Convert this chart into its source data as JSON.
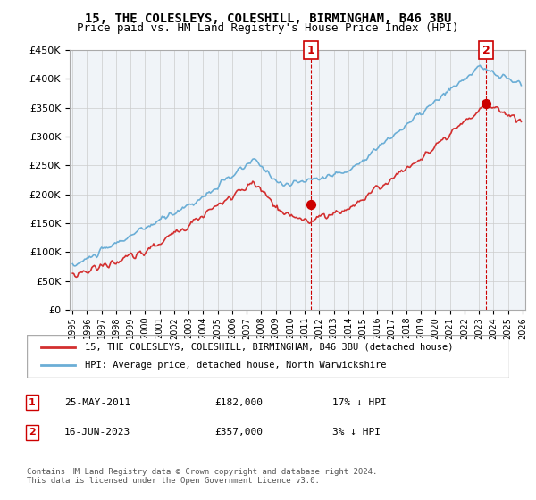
{
  "title": "15, THE COLESLEYS, COLESHILL, BIRMINGHAM, B46 3BU",
  "subtitle": "Price paid vs. HM Land Registry's House Price Index (HPI)",
  "ylabel_ticks": [
    "£0",
    "£50K",
    "£100K",
    "£150K",
    "£200K",
    "£250K",
    "£300K",
    "£350K",
    "£400K",
    "£450K"
  ],
  "ylim": [
    0,
    450000
  ],
  "yticks": [
    0,
    50000,
    100000,
    150000,
    200000,
    250000,
    300000,
    350000,
    400000,
    450000
  ],
  "hpi_color": "#6baed6",
  "price_color": "#d32f2f",
  "marker_color": "#d32f2f",
  "grid_color": "#cccccc",
  "bg_color": "#ffffff",
  "plot_bg": "#f5f5f5",
  "legend_label_price": "15, THE COLESLEYS, COLESHILL, BIRMINGHAM, B46 3BU (detached house)",
  "legend_label_hpi": "HPI: Average price, detached house, North Warwickshire",
  "annotation1_label": "1",
  "annotation1_date": "25-MAY-2011",
  "annotation1_price": "£182,000",
  "annotation1_note": "17% ↓ HPI",
  "annotation2_label": "2",
  "annotation2_date": "16-JUN-2023",
  "annotation2_price": "£357,000",
  "annotation2_note": "3% ↓ HPI",
  "footer": "Contains HM Land Registry data © Crown copyright and database right 2024.\nThis data is licensed under the Open Government Licence v3.0.",
  "x_start_year": 1995,
  "x_end_year": 2026
}
